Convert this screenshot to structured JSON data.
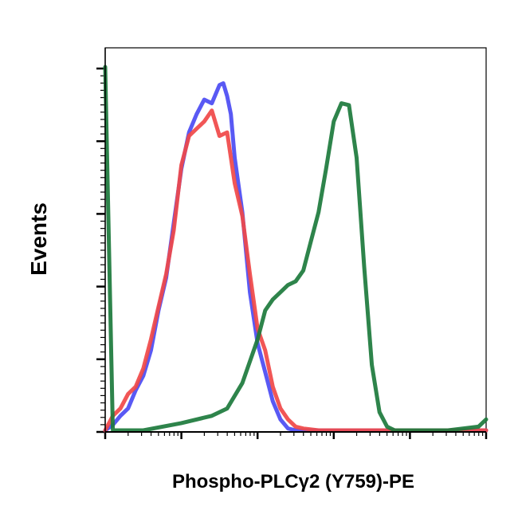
{
  "chart_data": {
    "type": "line",
    "title": "",
    "xlabel": "Phospho-PLCγ2 (Y759)-PE",
    "ylabel": "Events",
    "x_scale": "log",
    "xlim": [
      0,
      5
    ],
    "ylim": [
      0,
      1
    ],
    "legend": "none",
    "grid": false,
    "series": [
      {
        "color": "#4b4bf3",
        "x": [
          0.0,
          0.1,
          0.2,
          0.3,
          0.4,
          0.5,
          0.6,
          0.7,
          0.8,
          0.9,
          1.0,
          1.1,
          1.2,
          1.3,
          1.4,
          1.5,
          1.55,
          1.6,
          1.65,
          1.7,
          1.8,
          1.9,
          2.0,
          2.1,
          2.2,
          2.3,
          2.4,
          2.5,
          2.6,
          3.0,
          4.0,
          5.0
        ],
        "y": [
          0.0,
          0.015,
          0.04,
          0.06,
          0.11,
          0.15,
          0.22,
          0.33,
          0.42,
          0.57,
          0.72,
          0.82,
          0.87,
          0.91,
          0.9,
          0.95,
          0.955,
          0.92,
          0.87,
          0.75,
          0.6,
          0.38,
          0.24,
          0.16,
          0.08,
          0.03,
          0.005,
          0.0,
          0.0,
          0.0,
          0.0,
          0.0
        ]
      },
      {
        "color": "#f04848",
        "x": [
          0.0,
          0.1,
          0.2,
          0.3,
          0.4,
          0.5,
          0.6,
          0.7,
          0.8,
          0.9,
          1.0,
          1.1,
          1.2,
          1.3,
          1.4,
          1.5,
          1.6,
          1.7,
          1.8,
          1.9,
          2.0,
          2.1,
          2.2,
          2.3,
          2.4,
          2.5,
          2.6,
          2.8,
          3.0,
          4.0,
          5.0
        ],
        "y": [
          0.0,
          0.04,
          0.06,
          0.1,
          0.12,
          0.17,
          0.25,
          0.34,
          0.43,
          0.55,
          0.73,
          0.81,
          0.83,
          0.85,
          0.88,
          0.81,
          0.82,
          0.68,
          0.59,
          0.43,
          0.28,
          0.22,
          0.12,
          0.06,
          0.03,
          0.01,
          0.005,
          0.0,
          0.0,
          0.0,
          0.0
        ]
      },
      {
        "color": "#1c7a3c",
        "x": [
          0.0,
          0.05,
          0.1,
          0.5,
          1.0,
          1.4,
          1.6,
          1.8,
          2.0,
          2.1,
          2.2,
          2.3,
          2.4,
          2.5,
          2.6,
          2.7,
          2.8,
          2.9,
          3.0,
          3.1,
          3.2,
          3.3,
          3.4,
          3.5,
          3.6,
          3.7,
          3.8,
          4.0,
          4.5,
          4.9,
          5.0
        ],
        "y": [
          1.0,
          0.5,
          0.0,
          0.0,
          0.02,
          0.04,
          0.06,
          0.13,
          0.25,
          0.33,
          0.36,
          0.38,
          0.4,
          0.41,
          0.44,
          0.52,
          0.6,
          0.72,
          0.85,
          0.9,
          0.895,
          0.75,
          0.45,
          0.18,
          0.05,
          0.01,
          0.0,
          0.0,
          0.0,
          0.01,
          0.03
        ]
      }
    ]
  }
}
